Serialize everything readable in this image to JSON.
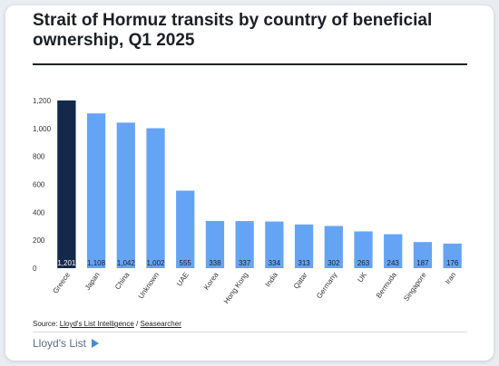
{
  "chart_data": {
    "type": "bar",
    "title": "Strait of Hormuz transits by country of beneficial ownership, Q1 2025",
    "categories": [
      "Greece",
      "Japan",
      "China",
      "Unknown",
      "UAE",
      "Korea",
      "Hong Kong",
      "India",
      "Qatar",
      "Germany",
      "UK",
      "Bermuda",
      "Singapore",
      "Iran"
    ],
    "values": [
      1201,
      1108,
      1042,
      1002,
      555,
      338,
      337,
      334,
      313,
      302,
      263,
      243,
      187,
      176
    ],
    "data_labels": [
      "1,201",
      "1,108",
      "1,042",
      "1,002",
      "555",
      "338",
      "337",
      "334",
      "313",
      "302",
      "263",
      "243",
      "187",
      "176"
    ],
    "y_ticks": [
      0,
      200,
      400,
      600,
      800,
      1000,
      1200
    ],
    "y_tick_labels": [
      "0",
      "200",
      "400",
      "600",
      "800",
      "1,000",
      "1,200"
    ],
    "ylim": [
      0,
      1200
    ],
    "xlabel": "",
    "ylabel": "",
    "grid": false,
    "legend": "none",
    "colors": {
      "highlight": "#14284a",
      "default": "#65a4f4"
    }
  },
  "source": {
    "prefix": "Source: ",
    "link1": "Lloyd's List Intelligence",
    "separator": " / ",
    "link2": "Seasearcher"
  },
  "brand": {
    "name": "Lloyd's List",
    "icon": "lloyds-play-icon"
  }
}
